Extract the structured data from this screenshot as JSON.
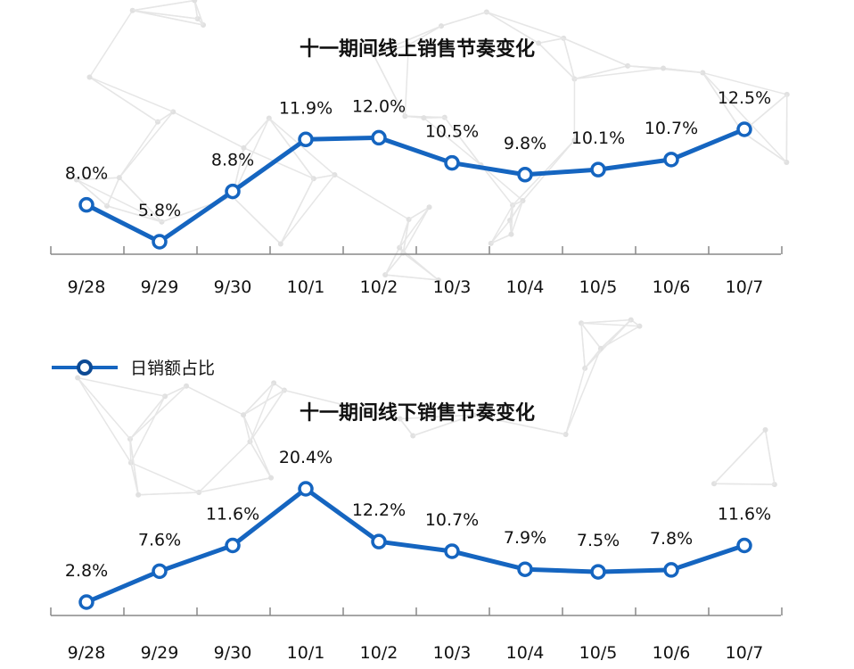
{
  "colors": {
    "line": "#1565c0",
    "axis": "#888888",
    "background_net": "#e6e6e6"
  },
  "legend": {
    "label": "日销额占比"
  },
  "chart_data": [
    {
      "type": "line",
      "title": "十一期间线上销售节奏变化",
      "categories": [
        "9/28",
        "9/29",
        "9/30",
        "10/1",
        "10/2",
        "10/3",
        "10/4",
        "10/5",
        "10/6",
        "10/7"
      ],
      "series": [
        {
          "name": "日销额占比",
          "values": [
            8.0,
            5.8,
            8.8,
            11.9,
            12.0,
            10.5,
            9.8,
            10.1,
            10.7,
            12.5
          ]
        }
      ],
      "labels": [
        "8.0%",
        "5.8%",
        "8.8%",
        "11.9%",
        "12.0%",
        "10.5%",
        "9.8%",
        "10.1%",
        "10.7%",
        "12.5%"
      ],
      "xlabel": "",
      "ylabel": "",
      "grid": false
    },
    {
      "type": "line",
      "title": "十一期间线下销售节奏变化",
      "categories": [
        "9/28",
        "9/29",
        "9/30",
        "10/1",
        "10/2",
        "10/3",
        "10/4",
        "10/5",
        "10/6",
        "10/7"
      ],
      "series": [
        {
          "name": "日销额占比",
          "values": [
            2.8,
            7.6,
            11.6,
            20.4,
            12.2,
            10.7,
            7.9,
            7.5,
            7.8,
            11.6
          ]
        }
      ],
      "labels": [
        "2.8%",
        "7.6%",
        "11.6%",
        "20.4%",
        "12.2%",
        "10.7%",
        "7.9%",
        "7.5%",
        "7.8%",
        "11.6%"
      ],
      "xlabel": "",
      "ylabel": "",
      "grid": false
    }
  ]
}
